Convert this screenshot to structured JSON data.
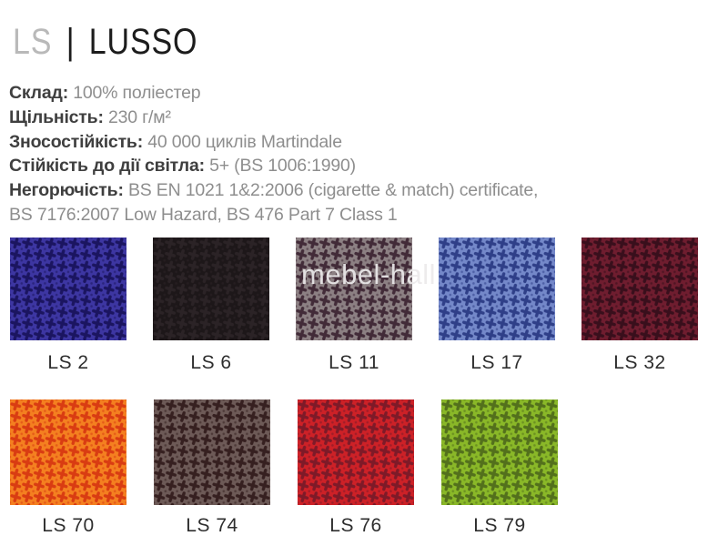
{
  "header": {
    "series_code": "LS",
    "separator": "|",
    "collection_name": "LUSSO",
    "code_color": "#b9b9b9",
    "name_color": "#1c1c1c"
  },
  "specs": [
    {
      "label": "Склад:",
      "value": "100% поліестер"
    },
    {
      "label": "Щільність:",
      "value": "230 г/м²"
    },
    {
      "label": "Зносостійкість:",
      "value": "40 000 циклів Martindale"
    },
    {
      "label": "Стійкість до дії світла:",
      "value": "5+ (BS 1006:1990)"
    },
    {
      "label": "Негорючість:",
      "value": "BS EN 1021 1&2:2006 (cigarette & match) certificate,"
    },
    {
      "label": "",
      "value": "BS 7176:2007 Low Hazard, BS 476 Part 7 Class 1"
    }
  ],
  "watermark": {
    "text": "mebel-hall"
  },
  "swatches": [
    {
      "label": "LS 2",
      "base_color": "#3d36a2",
      "motif_color": "#1b1560"
    },
    {
      "label": "LS 6",
      "base_color": "#1d1719",
      "motif_color": "#2b2326"
    },
    {
      "label": "LS 11",
      "base_color": "#8c8083",
      "motif_color": "#422b38"
    },
    {
      "label": "LS 17",
      "base_color": "#7488c9",
      "motif_color": "#2f3f88"
    },
    {
      "label": "LS 32",
      "base_color": "#6f1d2f",
      "motif_color": "#390f1c"
    },
    {
      "label": "LS 70",
      "base_color": "#f48020",
      "motif_color": "#d93c12"
    },
    {
      "label": "LS 74",
      "base_color": "#6d5a57",
      "motif_color": "#362020"
    },
    {
      "label": "LS 76",
      "base_color": "#cd2127",
      "motif_color": "#7e1a28"
    },
    {
      "label": "LS 79",
      "base_color": "#8ab828",
      "motif_color": "#53701c"
    }
  ]
}
